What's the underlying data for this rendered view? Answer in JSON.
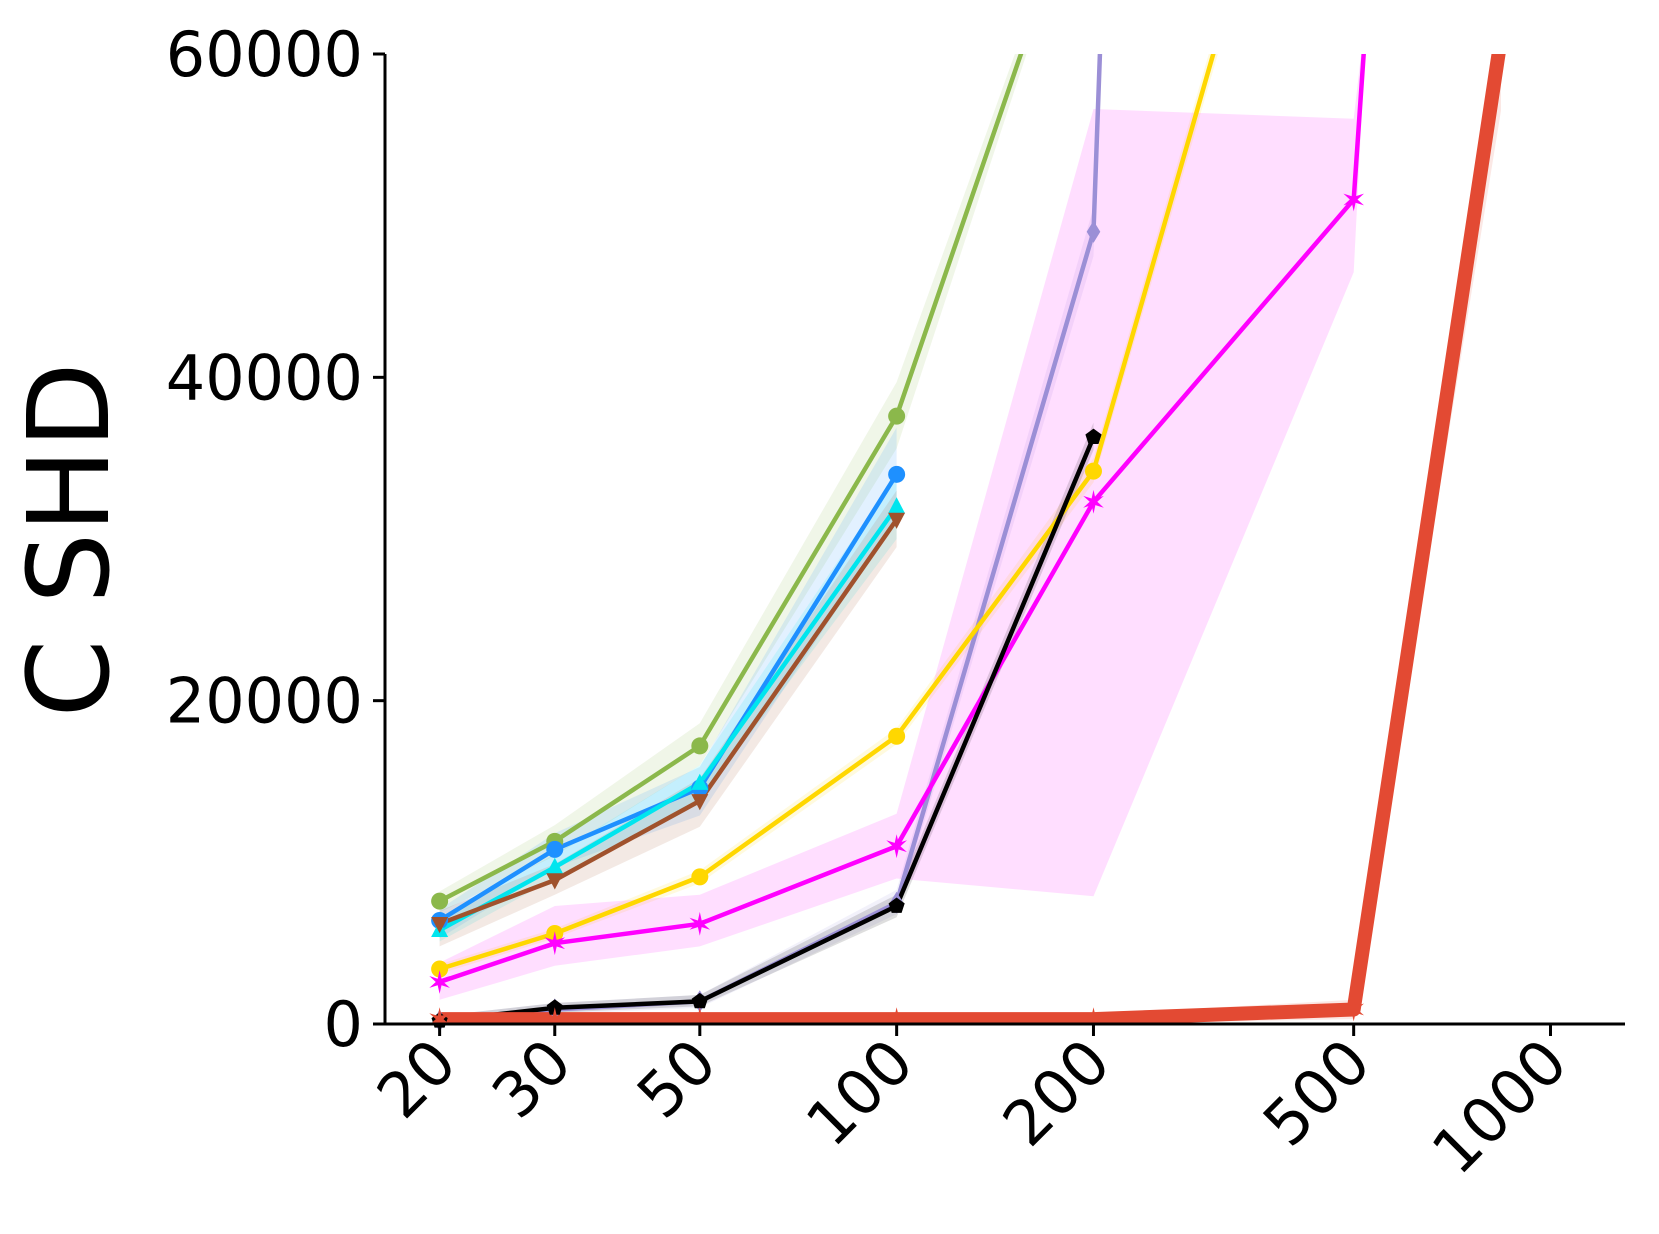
{
  "chart_data": {
    "type": "line",
    "title": "",
    "xlabel": "",
    "ylabel": "C SHD",
    "xscale": "log",
    "x_ticks": [
      20,
      30,
      50,
      100,
      200,
      500,
      1000
    ],
    "x_tick_labels": [
      "20",
      "30",
      "50",
      "100",
      "200",
      "500",
      "1000"
    ],
    "ylim": [
      0,
      60000
    ],
    "y_ticks": [
      0,
      20000,
      40000,
      60000
    ],
    "y_tick_labels": [
      "0",
      "20000",
      "40000",
      "60000"
    ],
    "grid": false,
    "legend": "none",
    "series": [
      {
        "color": "#8BB84B",
        "marker": "circle",
        "x": [
          20,
          30,
          50,
          100,
          158
        ],
        "y": [
          7600,
          11300,
          17200,
          37600,
          61000
        ],
        "lower": [
          6900,
          10400,
          16000,
          35600,
          60000
        ],
        "upper": [
          8200,
          12300,
          18600,
          39700,
          62000
        ]
      },
      {
        "color": "#1E90FF",
        "marker": "circle",
        "x": [
          20,
          30,
          50,
          100
        ],
        "y": [
          6400,
          10800,
          14600,
          34000
        ],
        "lower": [
          5300,
          9700,
          12900,
          31200
        ],
        "upper": [
          7100,
          11800,
          15900,
          36900
        ]
      },
      {
        "color": "#00E5EE",
        "marker": "triangle-up",
        "x": [
          20,
          30,
          50,
          100
        ],
        "y": [
          5800,
          9700,
          14900,
          32000
        ],
        "lower": [
          5100,
          9000,
          13800,
          30000
        ],
        "upper": [
          6600,
          10500,
          16000,
          34000
        ]
      },
      {
        "color": "#A0522D",
        "marker": "triangle-down",
        "x": [
          20,
          30,
          50,
          100
        ],
        "y": [
          6200,
          8900,
          13800,
          31200
        ],
        "lower": [
          4800,
          8000,
          12200,
          29500
        ],
        "upper": [
          7000,
          9900,
          15200,
          33000
        ]
      },
      {
        "color": "#9B8FD6",
        "marker": "diamond",
        "x": [
          20,
          30,
          50,
          100,
          200,
          205
        ],
        "y": [
          200,
          900,
          1400,
          7500,
          49000,
          61000
        ],
        "lower": [
          0,
          600,
          1000,
          6800,
          47500,
          60000
        ],
        "upper": [
          500,
          1300,
          1800,
          8300,
          50500,
          62000
        ]
      },
      {
        "color": "#FFD700",
        "marker": "circle",
        "x": [
          20,
          30,
          50,
          100,
          200,
          310
        ],
        "y": [
          3400,
          5600,
          9100,
          17800,
          34200,
          61000
        ],
        "lower": [
          3100,
          5300,
          8700,
          17300,
          33500,
          60000
        ],
        "upper": [
          3700,
          5900,
          9500,
          18300,
          35000,
          62000
        ]
      },
      {
        "color": "#FF00FF",
        "marker": "star",
        "x": [
          20,
          30,
          50,
          100,
          200,
          500,
          520
        ],
        "y": [
          2600,
          5000,
          6200,
          11000,
          32300,
          51000,
          61000
        ],
        "lower": [
          1500,
          3600,
          4800,
          9000,
          7900,
          46500,
          60000
        ],
        "upper": [
          3800,
          7300,
          8000,
          13000,
          56600,
          56000,
          62000
        ]
      },
      {
        "color": "#000000",
        "marker": "pentagon",
        "x": [
          20,
          30,
          50,
          100,
          200
        ],
        "y": [
          200,
          1000,
          1400,
          7300,
          36300
        ],
        "lower": [
          0,
          700,
          1100,
          6600,
          35500
        ],
        "upper": [
          500,
          1300,
          1800,
          8000,
          37200
        ]
      },
      {
        "color": "#E34A33",
        "marker": "star",
        "linewidth": 14,
        "x": [
          20,
          30,
          50,
          100,
          200,
          500,
          840
        ],
        "y": [
          300,
          300,
          300,
          300,
          300,
          900,
          61000
        ],
        "lower": [
          0,
          0,
          0,
          0,
          0,
          300,
          56500
        ],
        "upper": [
          600,
          600,
          600,
          600,
          600,
          1500,
          62000
        ]
      }
    ]
  }
}
